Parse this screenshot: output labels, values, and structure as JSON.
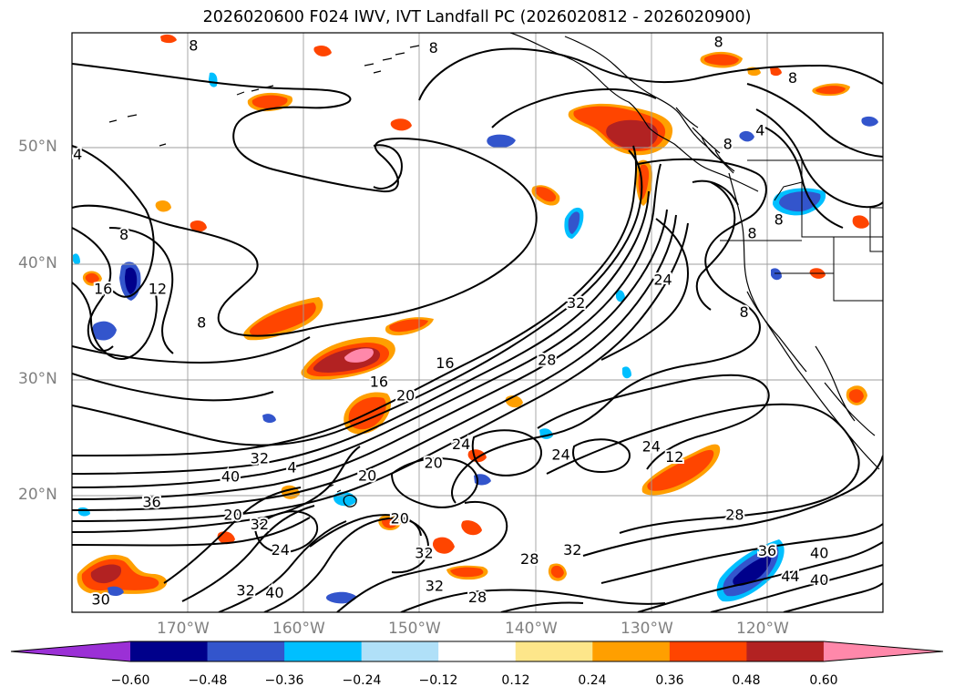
{
  "title": "2026020600 F024 IWV, IVT Landfall PC (2026020812 - 2026020900)",
  "map": {
    "lat_labels": [
      {
        "text": "50°N",
        "lat": 50
      },
      {
        "text": "40°N",
        "lat": 40
      },
      {
        "text": "30°N",
        "lat": 30
      },
      {
        "text": "20°N",
        "lat": 20
      }
    ],
    "lon_labels": [
      {
        "text": "170°W",
        "lon": -170
      },
      {
        "text": "160°W",
        "lon": -160
      },
      {
        "text": "150°W",
        "lon": -150
      },
      {
        "text": "140°W",
        "lon": -140
      },
      {
        "text": "130°W",
        "lon": -130
      },
      {
        "text": "120°W",
        "lon": -120
      }
    ],
    "contour_labels": [
      {
        "text": "8",
        "lon": -169.5,
        "lat": 58.8
      },
      {
        "text": "8",
        "lon": -148.8,
        "lat": 58.6
      },
      {
        "text": "8",
        "lon": -124.2,
        "lat": 59.1
      },
      {
        "text": "8",
        "lon": -117.8,
        "lat": 56.0
      },
      {
        "text": "8",
        "lon": -123.4,
        "lat": 50.3
      },
      {
        "text": "4",
        "lon": -120.6,
        "lat": 51.5
      },
      {
        "text": "4",
        "lon": -179.5,
        "lat": 49.4
      },
      {
        "text": "8",
        "lon": -175.5,
        "lat": 42.5
      },
      {
        "text": "16",
        "lon": -177.3,
        "lat": 37.8
      },
      {
        "text": "12",
        "lon": -172.6,
        "lat": 37.8
      },
      {
        "text": "8",
        "lon": -168.8,
        "lat": 34.9
      },
      {
        "text": "8",
        "lon": -119.0,
        "lat": 43.8
      },
      {
        "text": "8",
        "lon": -121.3,
        "lat": 42.6
      },
      {
        "text": "8",
        "lon": -122.0,
        "lat": 35.8
      },
      {
        "text": "24",
        "lon": -129.0,
        "lat": 38.6
      },
      {
        "text": "32",
        "lon": -136.5,
        "lat": 36.6
      },
      {
        "text": "28",
        "lon": -139.0,
        "lat": 31.7
      },
      {
        "text": "16",
        "lon": -147.8,
        "lat": 31.4
      },
      {
        "text": "16",
        "lon": -153.5,
        "lat": 29.8
      },
      {
        "text": "20",
        "lon": -151.2,
        "lat": 28.6
      },
      {
        "text": "24",
        "lon": -146.4,
        "lat": 24.4
      },
      {
        "text": "24",
        "lon": -137.8,
        "lat": 23.5
      },
      {
        "text": "20",
        "lon": -148.8,
        "lat": 22.8
      },
      {
        "text": "24",
        "lon": -130.0,
        "lat": 24.2
      },
      {
        "text": "12",
        "lon": -128.0,
        "lat": 23.3
      },
      {
        "text": "40",
        "lon": -166.3,
        "lat": 21.6
      },
      {
        "text": "4",
        "lon": -161.0,
        "lat": 22.4
      },
      {
        "text": "32",
        "lon": -163.8,
        "lat": 23.2
      },
      {
        "text": "20",
        "lon": -154.5,
        "lat": 21.7
      },
      {
        "text": "36",
        "lon": -173.1,
        "lat": 19.4
      },
      {
        "text": "20",
        "lon": -166.1,
        "lat": 18.3
      },
      {
        "text": "32",
        "lon": -163.8,
        "lat": 17.5
      },
      {
        "text": "20",
        "lon": -151.7,
        "lat": 18.0
      },
      {
        "text": "28",
        "lon": -122.8,
        "lat": 18.3
      },
      {
        "text": "32",
        "lon": -136.8,
        "lat": 15.3
      },
      {
        "text": "36",
        "lon": -120.0,
        "lat": 15.2
      },
      {
        "text": "40",
        "lon": -115.5,
        "lat": 15.0
      },
      {
        "text": "24",
        "lon": -162.0,
        "lat": 15.3
      },
      {
        "text": "32",
        "lon": -149.6,
        "lat": 15.0
      },
      {
        "text": "28",
        "lon": -140.5,
        "lat": 14.5
      },
      {
        "text": "44",
        "lon": -118.0,
        "lat": 13.0
      },
      {
        "text": "40",
        "lon": -115.5,
        "lat": 12.7
      },
      {
        "text": "32",
        "lon": -148.7,
        "lat": 12.2
      },
      {
        "text": "28",
        "lon": -145.0,
        "lat": 11.2
      },
      {
        "text": "30",
        "lon": -177.5,
        "lat": 11.0
      },
      {
        "text": "32",
        "lon": -165.0,
        "lat": 11.8
      },
      {
        "text": "40",
        "lon": -162.5,
        "lat": 11.6
      }
    ]
  },
  "colorbar": {
    "ticks": [
      "−0.60",
      "−0.48",
      "−0.36",
      "−0.24",
      "−0.12",
      "0.12",
      "0.24",
      "0.36",
      "0.48",
      "0.60"
    ],
    "bins": [
      {
        "from": "-inf",
        "to": -0.6,
        "color": "#9b30d6"
      },
      {
        "from": -0.6,
        "to": -0.48,
        "color": "#00008b"
      },
      {
        "from": -0.48,
        "to": -0.36,
        "color": "#3355cc"
      },
      {
        "from": -0.36,
        "to": -0.24,
        "color": "#00bfff"
      },
      {
        "from": -0.24,
        "to": -0.12,
        "color": "#b0e0f8"
      },
      {
        "from": -0.12,
        "to": 0.12,
        "color": "#ffffff"
      },
      {
        "from": 0.12,
        "to": 0.24,
        "color": "#fde68a"
      },
      {
        "from": 0.24,
        "to": 0.36,
        "color": "#ff9f00"
      },
      {
        "from": 0.36,
        "to": 0.48,
        "color": "#ff4500"
      },
      {
        "from": 0.48,
        "to": 0.6,
        "color": "#b22222"
      },
      {
        "from": 0.6,
        "to": "inf",
        "color": "#ff88aa"
      }
    ]
  }
}
